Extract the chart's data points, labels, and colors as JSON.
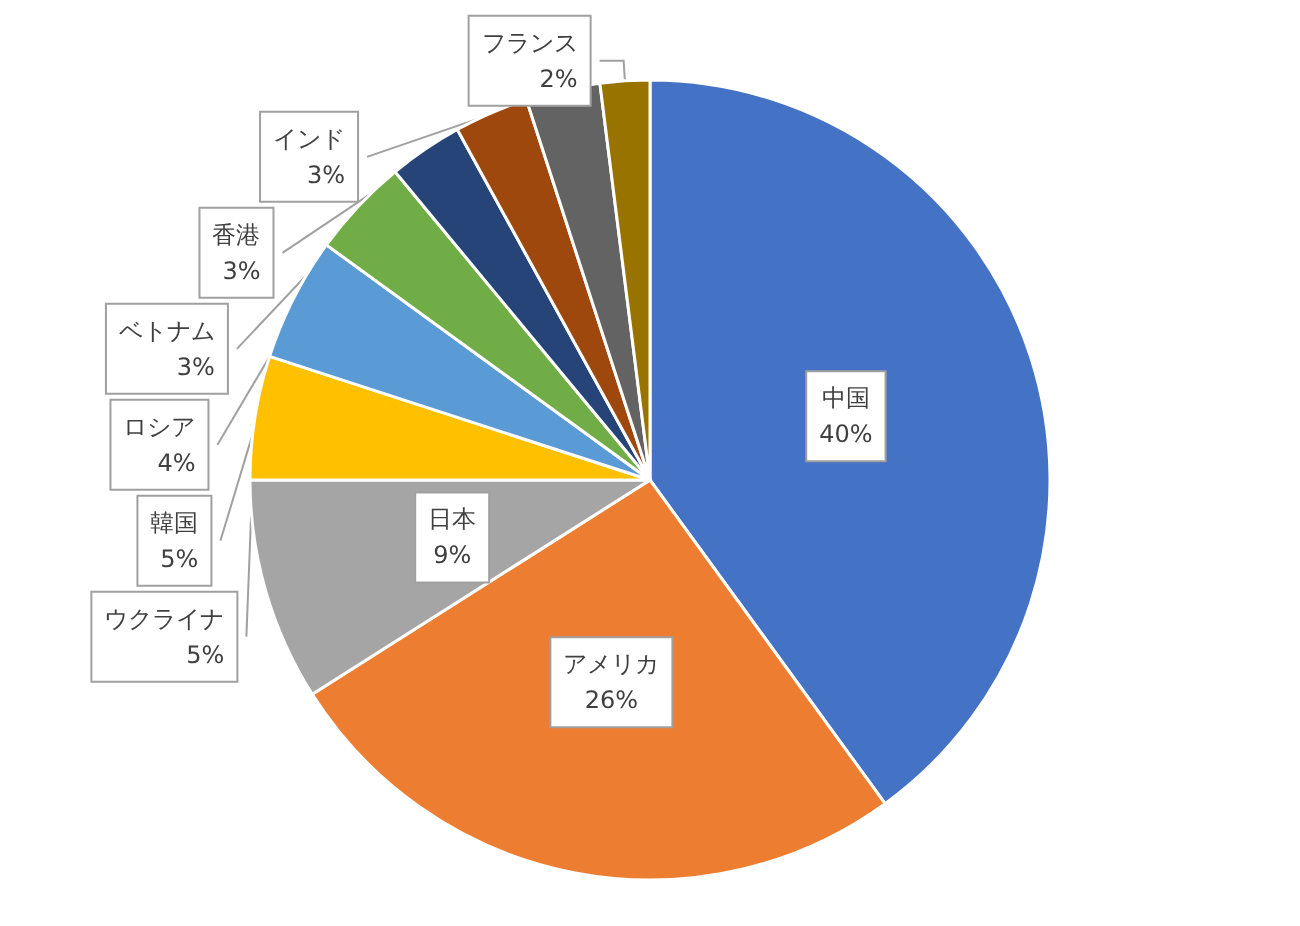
{
  "chart_data": {
    "type": "pie",
    "categories": [
      "中国",
      "アメリカ",
      "日本",
      "ウクライナ",
      "韓国",
      "ロシア",
      "ベトナム",
      "香港",
      "インド",
      "フランス"
    ],
    "values": [
      40,
      26,
      9,
      5,
      5,
      4,
      3,
      3,
      3,
      2
    ],
    "value_labels": [
      "40%",
      "26%",
      "9%",
      "5%",
      "5%",
      "4%",
      "3%",
      "3%",
      "3%",
      "2%"
    ],
    "colors": [
      "#4472c4",
      "#ed7d31",
      "#a5a5a5",
      "#ffc000",
      "#5b9bd5",
      "#70ad47",
      "#264478",
      "#9e480e",
      "#636363",
      "#997300"
    ],
    "legend": false
  }
}
